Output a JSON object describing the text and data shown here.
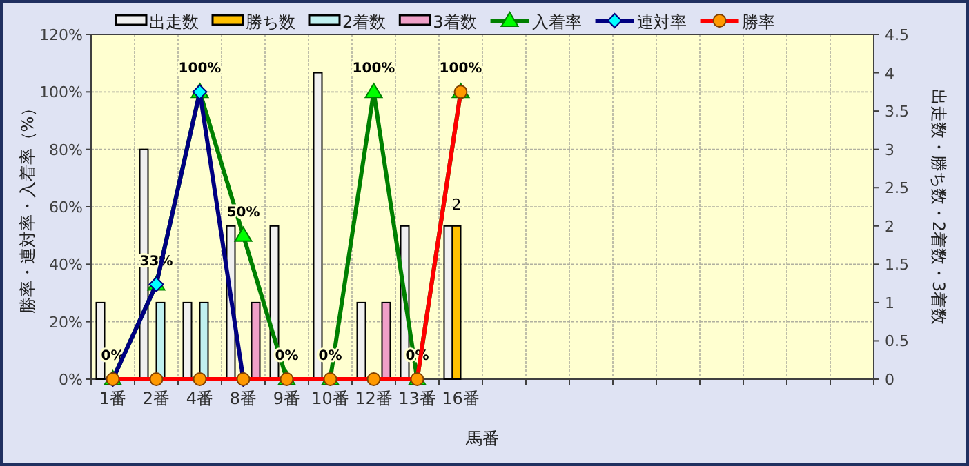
{
  "chart_data": {
    "type": "bar",
    "xlabel": "馬番",
    "ylabel": "勝率・連対率・入着率（%）",
    "y2label": "出走数・勝ち数・2着数・3着数",
    "categories": [
      "1番",
      "2番",
      "4番",
      "8番",
      "9番",
      "10番",
      "12番",
      "13番",
      "16番",
      null,
      null,
      null,
      null,
      null,
      null,
      null,
      null,
      null
    ],
    "series": [
      {
        "name": "出走数",
        "axis": "y2",
        "color": "#f0f0f0",
        "values": [
          1,
          3,
          1,
          2,
          2,
          4,
          1,
          2,
          2,
          null,
          null,
          null,
          null,
          null,
          null,
          null,
          null,
          null
        ]
      },
      {
        "name": "勝ち数",
        "axis": "y2",
        "color": "#ffc000",
        "values": [
          0,
          0,
          0,
          0,
          0,
          0,
          0,
          0,
          2,
          null,
          null,
          null,
          null,
          null,
          null,
          null,
          null,
          null
        ],
        "value_labels": [
          null,
          null,
          null,
          null,
          null,
          null,
          null,
          null,
          "2",
          null,
          null,
          null,
          null,
          null,
          null,
          null,
          null,
          null
        ]
      },
      {
        "name": "2着数",
        "axis": "y2",
        "color": "#c0f0f0",
        "values": [
          0,
          1,
          1,
          0,
          0,
          0,
          0,
          0,
          0,
          null,
          null,
          null,
          null,
          null,
          null,
          null,
          null,
          null
        ]
      },
      {
        "name": "3着数",
        "axis": "y2",
        "color": "#f0a0c8",
        "values": [
          0,
          0,
          0,
          1,
          0,
          0,
          1,
          0,
          0,
          null,
          null,
          null,
          null,
          null,
          null,
          null,
          null,
          null
        ]
      },
      {
        "name": "入着率",
        "type": "line",
        "color": "#008000",
        "marker": "triangle",
        "values": [
          0,
          33,
          100,
          50,
          0,
          0,
          100,
          0,
          100,
          null,
          null,
          null,
          null,
          null,
          null,
          null,
          null,
          null
        ],
        "value_labels": [
          "0%",
          "33%",
          "100%",
          "50%",
          "0%",
          "0%",
          "100%",
          "0%",
          "100%",
          null,
          null,
          null,
          null,
          null,
          null,
          null,
          null,
          null
        ]
      },
      {
        "name": "連対率",
        "type": "line",
        "color": "#000080",
        "marker": "diamond",
        "values": [
          0,
          33,
          100,
          0,
          null,
          null,
          null,
          null,
          null,
          null,
          null,
          null,
          null,
          null,
          null,
          null,
          null,
          null
        ]
      },
      {
        "name": "勝率",
        "type": "line",
        "color": "#ff0000",
        "marker": "circle",
        "values": [
          0,
          0,
          0,
          0,
          0,
          0,
          0,
          0,
          100,
          null,
          null,
          null,
          null,
          null,
          null,
          null,
          null,
          null
        ]
      }
    ],
    "ylim": [
      0,
      120
    ],
    "yticks": [
      {
        "value": 0,
        "label": "0%"
      },
      {
        "value": 20,
        "label": "20%"
      },
      {
        "value": 40,
        "label": "40%"
      },
      {
        "value": 60,
        "label": "60%"
      },
      {
        "value": 80,
        "label": "80%"
      },
      {
        "value": 100,
        "label": "100%"
      },
      {
        "value": 120,
        "label": "120%"
      }
    ],
    "y2lim": [
      0,
      4.5
    ],
    "y2ticks": [
      0,
      0.5,
      1,
      1.5,
      2,
      2.5,
      3,
      3.5,
      4,
      4.5
    ],
    "grid": true,
    "legend": "top"
  }
}
